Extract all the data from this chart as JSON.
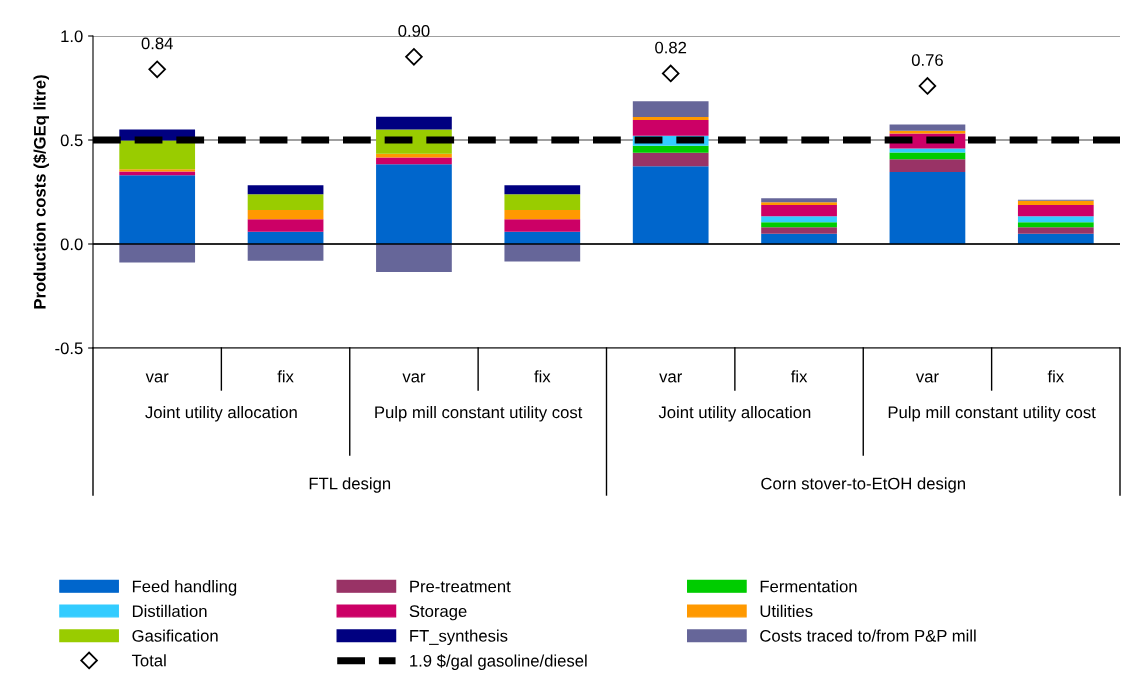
{
  "chart_data": {
    "type": "bar",
    "stacked": true,
    "ylabel": "Production costs ($/GEq litre)",
    "categories": [
      "var",
      "fix",
      "var",
      "fix",
      "var",
      "fix",
      "var",
      "fix"
    ],
    "annotations": [
      "Joint utility allocation",
      "Pulp mill constant utility cost",
      "Joint utility allocation",
      "Pulp mill constant utility cost",
      "FTL design",
      "Corn stover-to-EtOH design"
    ],
    "series": [
      {
        "name": "Feed handling",
        "color": "#0066cc",
        "values": [
          0.33,
          0.059,
          0.384,
          0.059,
          0.374,
          0.049,
          0.346,
          0.049
        ]
      },
      {
        "name": "Pre-treatment",
        "color": "#993366",
        "values": [
          null,
          null,
          null,
          null,
          0.065,
          0.032,
          0.061,
          0.032
        ]
      },
      {
        "name": "Fermentation",
        "color": "#00cc00",
        "values": [
          null,
          null,
          null,
          null,
          0.033,
          0.024,
          0.033,
          0.024
        ]
      },
      {
        "name": "Distillation",
        "color": "#33ccff",
        "values": [
          null,
          null,
          null,
          null,
          0.048,
          0.029,
          0.019,
          0.029
        ]
      },
      {
        "name": "Storage",
        "color": "#cc0066",
        "values": [
          0.019,
          0.06,
          0.032,
          0.06,
          0.076,
          0.053,
          0.072,
          0.053
        ]
      },
      {
        "name": "Utilities",
        "color": "#ff9900",
        "values": [
          0.01,
          0.045,
          0.018,
          0.045,
          0.014,
          0.014,
          0.014,
          0.021
        ]
      },
      {
        "name": "Gasification",
        "color": "#99cc00",
        "values": [
          0.138,
          0.075,
          0.116,
          0.075,
          null,
          null,
          null,
          null
        ]
      },
      {
        "name": "FT_synthesis",
        "color": "#000080",
        "values": [
          0.053,
          0.043,
          0.062,
          0.043,
          null,
          null,
          null,
          null
        ]
      },
      {
        "name": "Costs traced to/from P&P mill",
        "color": "#666699",
        "values": [
          -0.089,
          -0.08,
          -0.135,
          -0.084,
          0.076,
          0.019,
          0.029,
          0.005
        ]
      },
      {
        "name": "Total",
        "type": "scatter",
        "marker": "diamond",
        "color": "#000000",
        "values": [
          0.84,
          null,
          0.9,
          null,
          0.82,
          null,
          0.76,
          null
        ],
        "value_labels": [
          "0.84",
          null,
          "0.90",
          null,
          "0.82",
          null,
          "0.76",
          null
        ]
      }
    ],
    "ref_lines": [
      {
        "axis": "y",
        "value": 0.5,
        "label": "1.9 $/gal gasoline/diesel",
        "color": "#000000",
        "line_style": "dashed"
      }
    ],
    "ylim": [
      -0.5,
      1.0
    ],
    "yticks": [
      {
        "value": -0.5,
        "label": "-0.5"
      },
      {
        "value": 0,
        "label": "0.0"
      },
      {
        "value": 0.5,
        "label": "0.5"
      },
      {
        "value": 1.0,
        "label": "1.0"
      }
    ],
    "grid": "y",
    "legend": "bottom"
  }
}
